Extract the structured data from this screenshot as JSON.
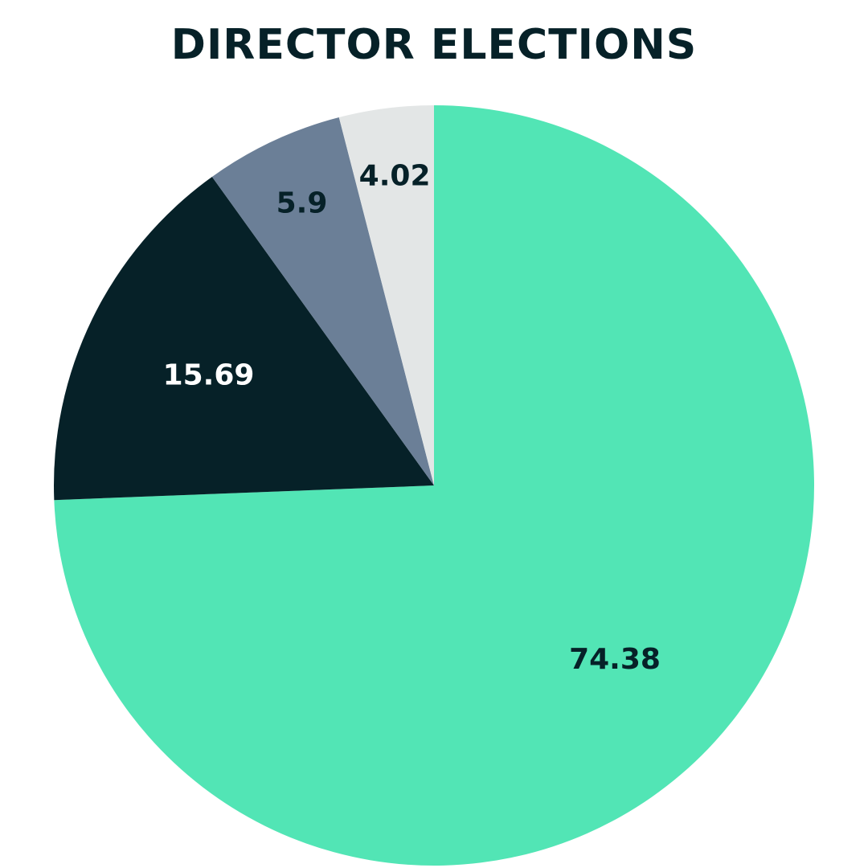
{
  "chart_data": {
    "type": "pie",
    "title": "DIRECTOR ELECTIONS",
    "slices": [
      {
        "value": 74.38,
        "label": "74.38",
        "color": "#52E5B5",
        "label_color": "#062128"
      },
      {
        "value": 15.69,
        "label": "15.69",
        "color": "#062128",
        "label_color": "#ffffff"
      },
      {
        "value": 5.9,
        "label": "5.9",
        "color": "#6B7F97",
        "label_color": "#062128"
      },
      {
        "value": 4.02,
        "label": "4.02",
        "color": "#E3E6E6",
        "label_color": "#062128"
      }
    ],
    "start": "12 o'clock",
    "direction": "clockwise"
  }
}
